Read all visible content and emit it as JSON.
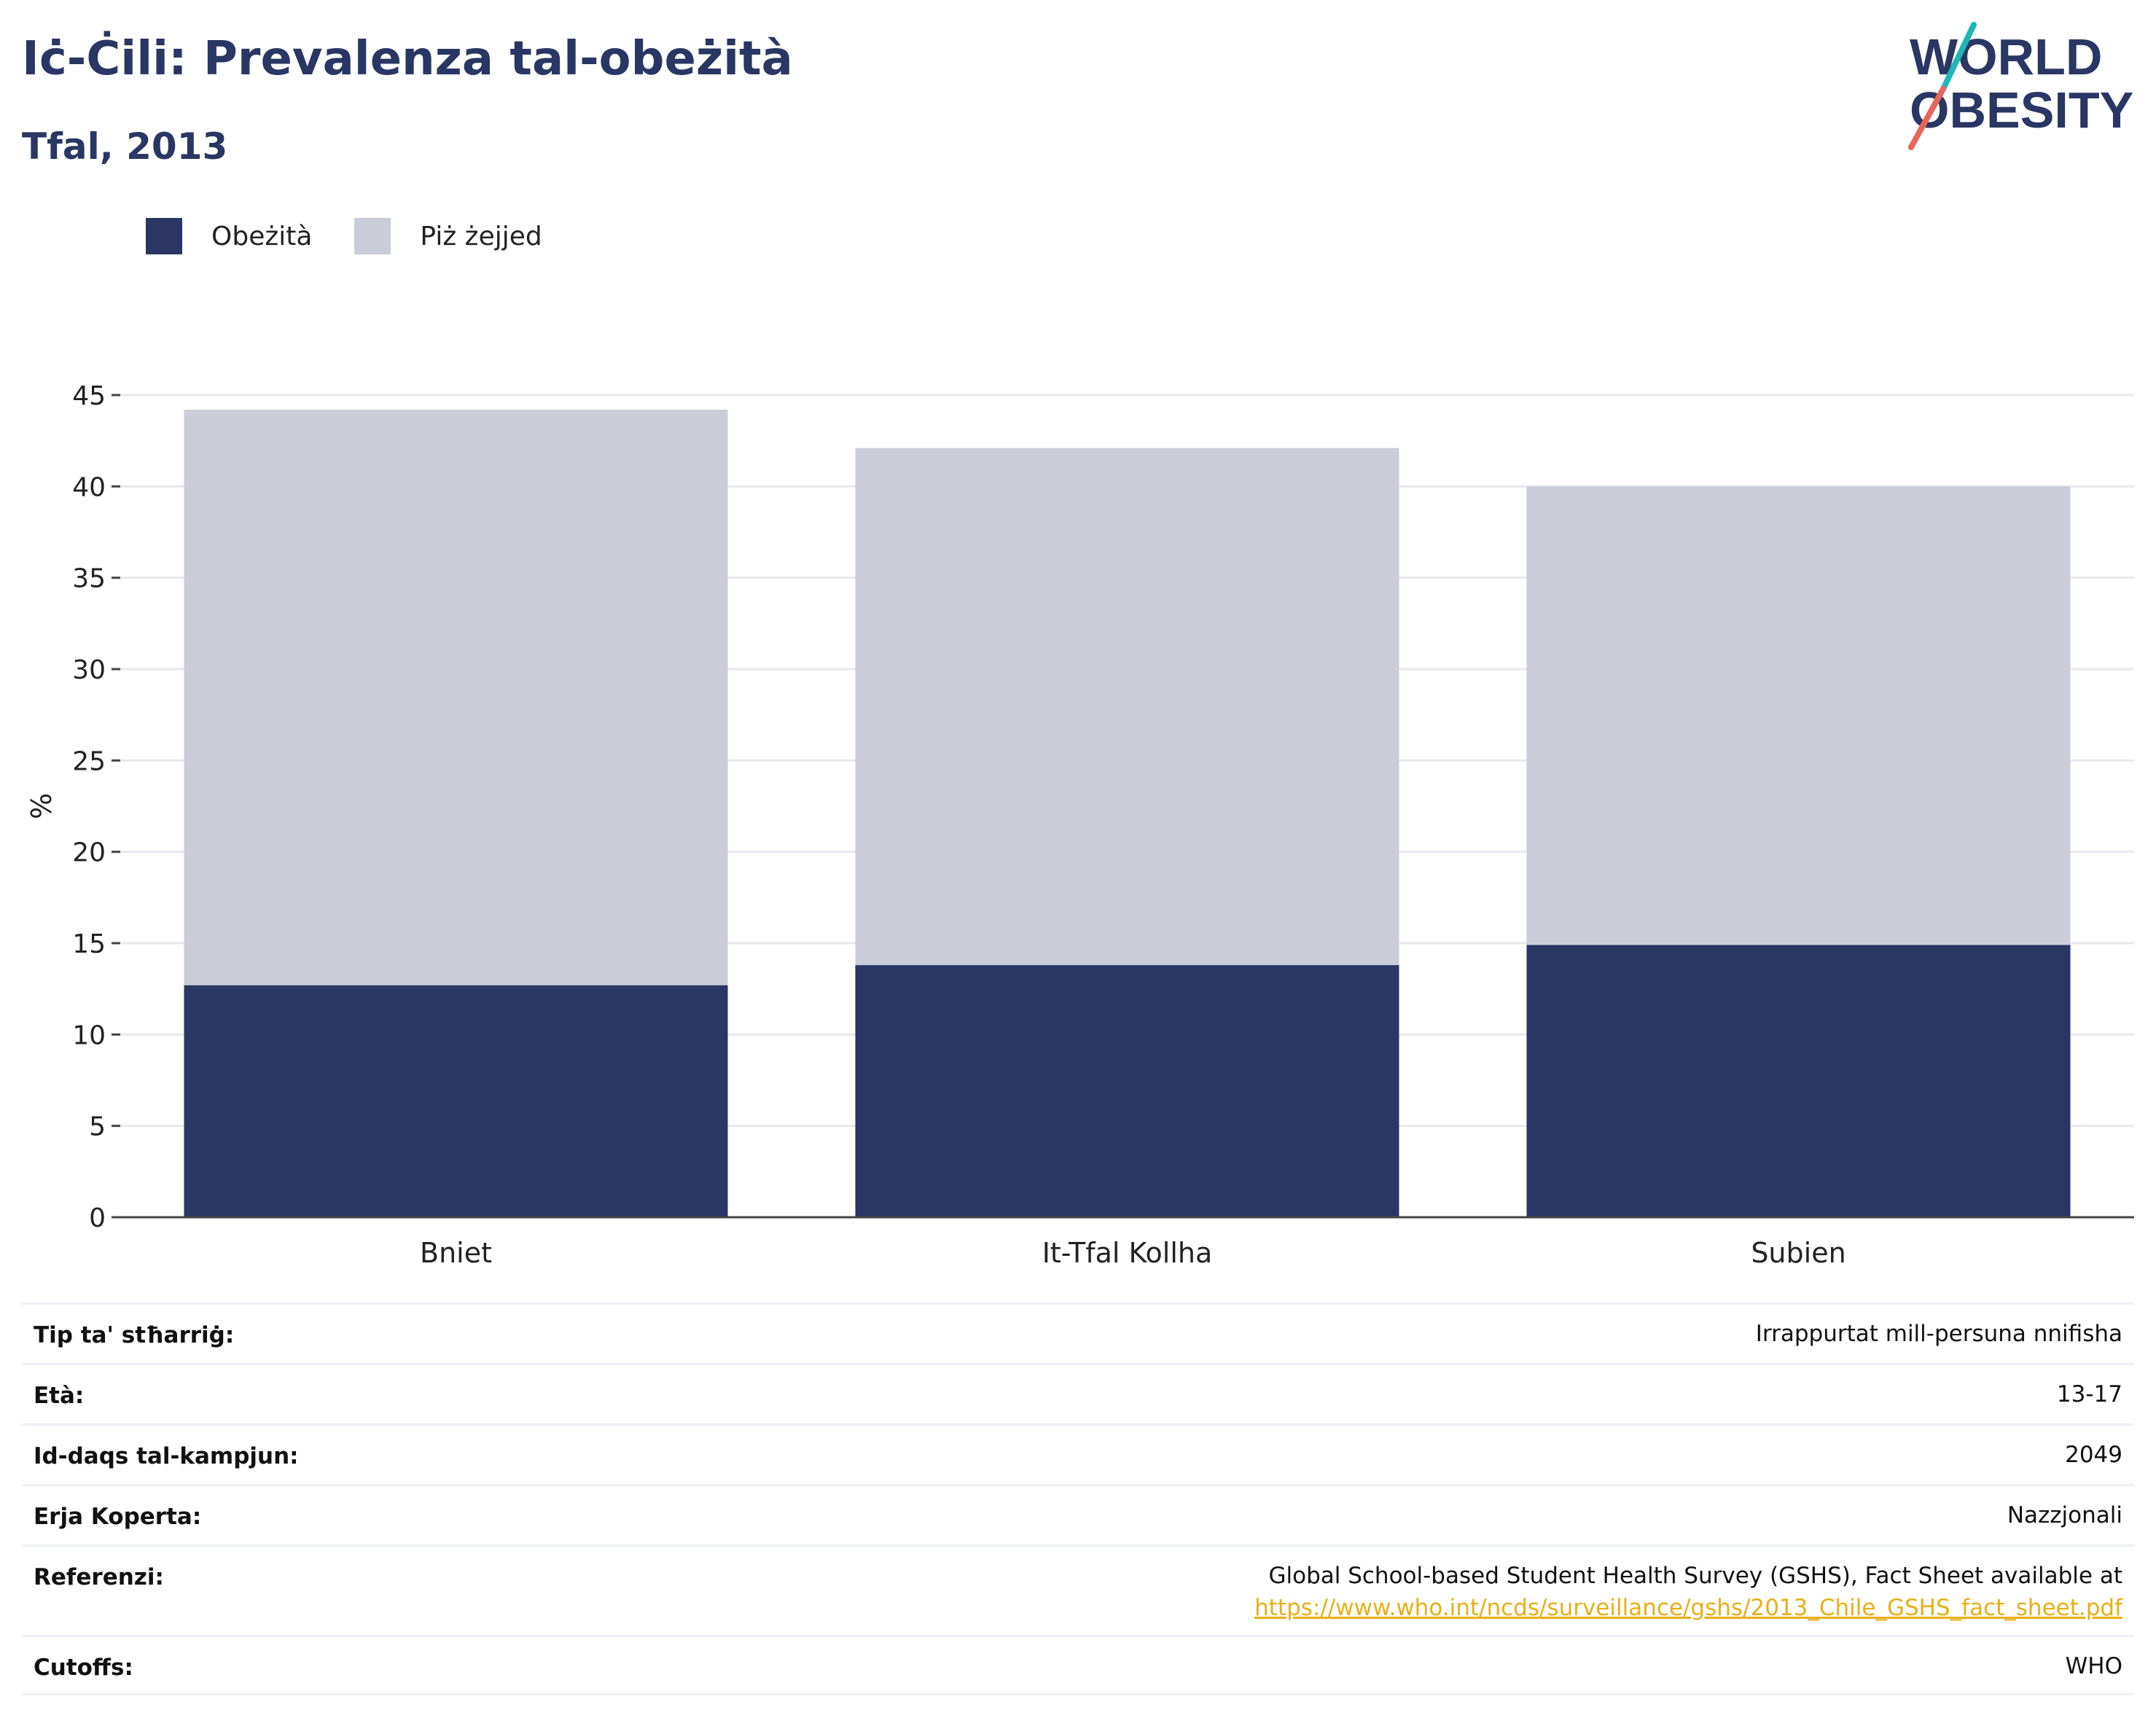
{
  "header": {
    "title": "Iċ-Ċili: Prevalenza tal-obeżità",
    "subtitle": "Tfal, 2013"
  },
  "logo": {
    "line1": "WORLD",
    "line2": "OBESITY",
    "slash_colors": [
      "#1fb6b4",
      "#e8665a"
    ]
  },
  "chart_data": {
    "type": "bar",
    "stacked": true,
    "categories": [
      "Bniet",
      "It-Tfal Kollha",
      "Subien"
    ],
    "series": [
      {
        "name": "Obeżità",
        "values": [
          12.7,
          13.8,
          14.9
        ],
        "color": "#2a3663"
      },
      {
        "name": "Piż żejjed",
        "values": [
          31.5,
          28.3,
          25.1
        ],
        "color": "#cacdd8"
      }
    ],
    "title": "",
    "xlabel": "",
    "ylabel": "%",
    "ylim": [
      0,
      45
    ],
    "yticks": [
      0,
      5,
      10,
      15,
      20,
      25,
      30,
      35,
      40,
      45
    ],
    "grid": true,
    "legend_position": "top-left"
  },
  "info": [
    {
      "key": "Tip ta' stħarriġ:",
      "value": "Irrappurtat mill-persuna nnifisha"
    },
    {
      "key": "Età:",
      "value": "13-17"
    },
    {
      "key": "Id-daqs tal-kampjun:",
      "value": "2049"
    },
    {
      "key": "Erja Koperta:",
      "value": "Nazzjonali"
    },
    {
      "key": "Referenzi:",
      "value": "Global School-based Student Health Survey (GSHS), Fact Sheet available at",
      "link": "https://www.who.int/ncds/surveillance/gshs/2013_Chile_GSHS_fact_sheet.pdf"
    },
    {
      "key": "Cutoffs:",
      "value": "WHO"
    }
  ]
}
